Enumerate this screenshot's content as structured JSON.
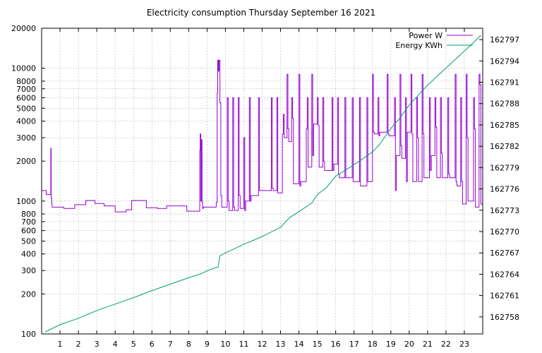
{
  "chart_data": {
    "type": "line",
    "title": "Electricity consumption Thursday September 16 2021",
    "x_range": [
      0,
      24
    ],
    "x_ticks": [
      1,
      2,
      3,
      4,
      5,
      6,
      7,
      8,
      9,
      10,
      11,
      12,
      13,
      14,
      15,
      16,
      17,
      18,
      19,
      20,
      21,
      22,
      23
    ],
    "y_left": {
      "scale": "log",
      "range": [
        100,
        20000
      ],
      "ticks": [
        100,
        200,
        300,
        400,
        500,
        600,
        700,
        800,
        1000,
        2000,
        3000,
        4000,
        5000,
        6000,
        7000,
        8000,
        10000,
        20000
      ]
    },
    "y_right": {
      "scale": "linear",
      "range": [
        162755.6,
        162798.6
      ],
      "ticks": [
        162758,
        162761,
        162764,
        162767,
        162770,
        162773,
        162776,
        162779,
        162782,
        162785,
        162788,
        162791,
        162794,
        162797
      ]
    },
    "grid": true,
    "legend_position": "top-right",
    "colors": {
      "power": "#9400d3",
      "energy": "#009e73"
    },
    "series": [
      {
        "name": "Power W",
        "axis": "left",
        "step": true,
        "x": [
          0,
          0.25,
          0.5,
          0.52,
          0.55,
          0.57,
          0.7,
          1.2,
          1.8,
          2.4,
          2.9,
          3.4,
          4.0,
          4.6,
          4.9,
          5.7,
          6.3,
          6.8,
          7.9,
          8.6,
          8.63,
          8.66,
          8.7,
          8.73,
          8.76,
          8.8,
          9.5,
          9.55,
          9.58,
          9.62,
          9.65,
          9.7,
          9.75,
          9.8,
          10.1,
          10.15,
          10.2,
          10.4,
          10.45,
          10.5,
          10.7,
          10.75,
          10.8,
          11.0,
          11.05,
          11.1,
          11.3,
          11.35,
          11.4,
          11.8,
          11.85,
          11.9,
          12.5,
          12.55,
          12.6,
          12.8,
          12.85,
          12.9,
          13.1,
          13.15,
          13.2,
          13.35,
          13.4,
          13.45,
          13.6,
          13.65,
          13.7,
          14.0,
          14.05,
          14.1,
          14.4,
          14.45,
          14.5,
          14.7,
          14.75,
          14.8,
          15.0,
          15.05,
          15.1,
          15.3,
          15.35,
          15.4,
          15.8,
          15.85,
          15.9,
          16.1,
          16.15,
          16.2,
          16.5,
          16.55,
          16.6,
          16.9,
          16.95,
          17.0,
          17.3,
          17.35,
          17.4,
          17.7,
          17.75,
          17.8,
          18.0,
          18.05,
          18.1,
          18.3,
          18.35,
          18.4,
          18.8,
          18.85,
          18.9,
          19.2,
          19.25,
          19.3,
          19.5,
          19.55,
          19.6,
          19.8,
          19.85,
          19.9,
          20.1,
          20.15,
          20.2,
          20.4,
          20.45,
          20.5,
          20.7,
          20.75,
          20.8,
          21.1,
          21.15,
          21.2,
          21.4,
          21.45,
          21.5,
          21.7,
          21.75,
          21.8,
          22.1,
          22.15,
          22.2,
          22.5,
          22.55,
          22.6,
          22.8,
          22.85,
          22.9,
          23.1,
          23.15,
          23.2,
          23.5,
          23.55,
          23.6,
          23.8,
          23.85,
          23.9
        ],
        "values": [
          1200,
          1120,
          2500,
          1050,
          960,
          900,
          900,
          880,
          940,
          1010,
          960,
          920,
          830,
          860,
          1010,
          890,
          880,
          920,
          840,
          2400,
          3200,
          1000,
          2900,
          980,
          880,
          900,
          980,
          6500,
          11500,
          9500,
          11500,
          5500,
          1100,
          900,
          6000,
          1000,
          850,
          6000,
          900,
          850,
          6000,
          1100,
          880,
          3000,
          850,
          1000,
          6000,
          1000,
          1100,
          6000,
          1200,
          1200,
          6000,
          1250,
          1200,
          6000,
          1150,
          1150,
          3200,
          4500,
          3000,
          9000,
          3500,
          2800,
          6000,
          4200,
          1350,
          9000,
          1300,
          1400,
          3500,
          6000,
          1800,
          9000,
          2200,
          3800,
          6000,
          3700,
          1800,
          6000,
          2000,
          1700,
          6000,
          1700,
          1900,
          6000,
          1600,
          1500,
          6000,
          1500,
          1500,
          6000,
          1400,
          1400,
          6000,
          1300,
          1300,
          6000,
          1400,
          1400,
          9000,
          3300,
          3200,
          6000,
          3100,
          3300,
          9000,
          3200,
          3100,
          6000,
          1200,
          2200,
          9000,
          2600,
          2100,
          6000,
          1400,
          3300,
          9000,
          3200,
          1400,
          6000,
          3000,
          1400,
          9000,
          3200,
          1500,
          6000,
          1700,
          2200,
          6000,
          3600,
          1500,
          6000,
          2300,
          1500,
          6000,
          1600,
          1500,
          9000,
          1400,
          1300,
          6000,
          1400,
          950,
          9000,
          3000,
          1000,
          6000,
          3500,
          900,
          9000,
          7500,
          950
        ]
      },
      {
        "name": "Energy KWh",
        "axis": "right",
        "step": false,
        "x": [
          0.2,
          1.0,
          2.0,
          3.0,
          4.0,
          5.0,
          6.0,
          7.0,
          8.0,
          8.7,
          9.2,
          9.6,
          9.7,
          10.0,
          11.0,
          12.0,
          13.0,
          13.5,
          14.0,
          14.7,
          15.0,
          15.5,
          16.0,
          16.5,
          17.0,
          17.5,
          18.0,
          18.4,
          19.0,
          19.5,
          20.0,
          20.5,
          21.0,
          21.5,
          22.0,
          22.5,
          23.0,
          23.5,
          23.9
        ],
        "values": [
          162755.9,
          162756.9,
          162757.8,
          162758.9,
          162759.8,
          162760.7,
          162761.7,
          162762.6,
          162763.5,
          162764.1,
          162764.7,
          162765.0,
          162766.6,
          162767.0,
          162768.2,
          162769.3,
          162770.6,
          162772.0,
          162772.8,
          162774.0,
          162775.2,
          162776.2,
          162777.8,
          162778.6,
          162779.4,
          162780.3,
          162781.2,
          162782.3,
          162784.5,
          162786.0,
          162787.8,
          162789.2,
          162790.6,
          162791.8,
          162793.0,
          162794.2,
          162795.4,
          162796.6,
          162797.6
        ]
      }
    ]
  }
}
